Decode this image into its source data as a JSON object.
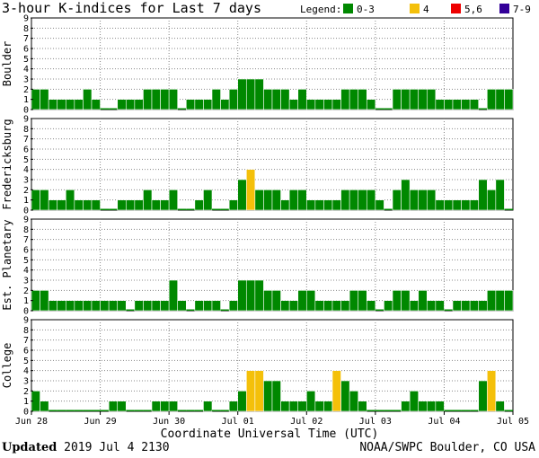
{
  "header": {
    "title": "3-hour K-indices for Last 7 days"
  },
  "legend": {
    "label": "Legend:",
    "items": [
      {
        "label": "0-3",
        "color": "#008800"
      },
      {
        "label": "4",
        "color": "#f4c00a"
      },
      {
        "label": "5,6",
        "color": "#ee0000"
      },
      {
        "label": "7-9",
        "color": "#330099"
      }
    ]
  },
  "footer": {
    "updated_label": "Updated",
    "updated_value": "2019 Jul  4 2130",
    "credit": "NOAA/SWPC Boulder, CO USA"
  },
  "chart_data": {
    "type": "bar",
    "title": "3-hour K-indices for Last 7 days",
    "xlabel": "Coordinate Universal Time (UTC)",
    "x_ticks": [
      "Jun 28",
      "Jun 29",
      "Jun 30",
      "Jul 01",
      "Jul 02",
      "Jul 03",
      "Jul 04",
      "Jul 05"
    ],
    "ylim": [
      0,
      9
    ],
    "y_ticks": [
      0,
      1,
      2,
      3,
      4,
      5,
      6,
      7,
      8,
      9
    ],
    "grid": true,
    "color_scale": [
      {
        "range": "0-3",
        "color": "#008800"
      },
      {
        "range": "4",
        "color": "#f4c00a"
      },
      {
        "range": "5,6",
        "color": "#ee0000"
      },
      {
        "range": "7-9",
        "color": "#330099"
      }
    ],
    "panels": [
      {
        "name": "Boulder",
        "values": [
          2,
          2,
          1,
          1,
          1,
          1,
          2,
          1,
          0,
          0,
          1,
          1,
          1,
          2,
          2,
          2,
          2,
          0,
          1,
          1,
          1,
          2,
          1,
          2,
          3,
          3,
          3,
          2,
          2,
          2,
          1,
          2,
          1,
          1,
          1,
          1,
          2,
          2,
          2,
          1,
          0,
          0,
          2,
          2,
          2,
          2,
          2,
          1,
          1,
          1,
          1,
          1,
          0,
          2,
          2,
          2
        ]
      },
      {
        "name": "Fredericksburg",
        "values": [
          2,
          2,
          1,
          1,
          2,
          1,
          1,
          1,
          0,
          0,
          1,
          1,
          1,
          2,
          1,
          1,
          2,
          0,
          0,
          1,
          2,
          0,
          0,
          1,
          3,
          4,
          2,
          2,
          2,
          1,
          2,
          2,
          1,
          1,
          1,
          1,
          2,
          2,
          2,
          2,
          1,
          0,
          2,
          3,
          2,
          2,
          2,
          1,
          1,
          1,
          1,
          1,
          3,
          2,
          3,
          0
        ]
      },
      {
        "name": "Est. Planetary",
        "values": [
          2,
          2,
          1,
          1,
          1,
          1,
          1,
          1,
          1,
          1,
          1,
          0,
          1,
          1,
          1,
          1,
          3,
          1,
          0,
          1,
          1,
          1,
          0,
          1,
          3,
          3,
          3,
          2,
          2,
          1,
          1,
          2,
          2,
          1,
          1,
          1,
          1,
          2,
          2,
          1,
          0,
          1,
          2,
          2,
          1,
          2,
          1,
          1,
          0,
          1,
          1,
          1,
          1,
          2,
          2,
          2
        ]
      },
      {
        "name": "College",
        "values": [
          2,
          1,
          0,
          0,
          0,
          0,
          0,
          0,
          0,
          1,
          1,
          0,
          0,
          0,
          1,
          1,
          1,
          0,
          0,
          0,
          1,
          0,
          0,
          1,
          2,
          4,
          4,
          3,
          3,
          1,
          1,
          1,
          2,
          1,
          1,
          4,
          3,
          2,
          1,
          0,
          0,
          0,
          0,
          1,
          2,
          1,
          1,
          1,
          0,
          0,
          0,
          0,
          3,
          4,
          1,
          0
        ]
      }
    ]
  }
}
